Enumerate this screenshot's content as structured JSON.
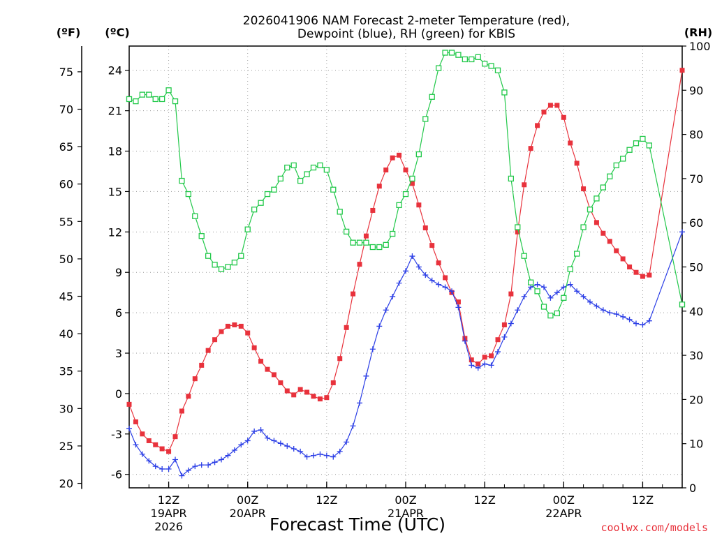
{
  "chart_data": {
    "type": "line",
    "title_line1": "2026041906 NAM Forecast 2-meter Temperature (red),",
    "title_line2": "Dewpoint (blue), RH (green) for KBIS",
    "xlabel": "Forecast Time (UTC)",
    "credit": "coolwx.com/models",
    "units": {
      "fahrenheit": "(ºF)",
      "celsius": "(ºC)",
      "rh": "(RH)"
    },
    "x_hours": [
      0,
      1,
      2,
      3,
      4,
      5,
      6,
      7,
      8,
      9,
      10,
      11,
      12,
      13,
      14,
      15,
      16,
      17,
      18,
      19,
      20,
      21,
      22,
      23,
      24,
      25,
      26,
      27,
      28,
      29,
      30,
      31,
      32,
      33,
      34,
      35,
      36,
      37,
      38,
      39,
      40,
      41,
      42,
      43,
      44,
      45,
      46,
      47,
      48,
      49,
      50,
      51,
      52,
      53,
      54,
      55,
      56,
      57,
      58,
      59,
      60,
      61,
      62,
      63,
      64,
      65,
      66,
      67,
      68,
      69,
      70,
      71,
      72,
      73,
      74,
      75,
      76,
      77,
      78,
      79,
      84
    ],
    "xlim": [
      0,
      84
    ],
    "grid": true,
    "x_ticks": [
      {
        "hour": 6,
        "label": "12Z",
        "sub": [
          "19APR",
          "2026"
        ]
      },
      {
        "hour": 18,
        "label": "00Z",
        "sub": [
          "20APR"
        ]
      },
      {
        "hour": 30,
        "label": "12Z",
        "sub": []
      },
      {
        "hour": 42,
        "label": "00Z",
        "sub": [
          "21APR"
        ]
      },
      {
        "hour": 54,
        "label": "12Z",
        "sub": []
      },
      {
        "hour": 66,
        "label": "00Z",
        "sub": [
          "22APR"
        ]
      },
      {
        "hour": 78,
        "label": "12Z",
        "sub": []
      }
    ],
    "y_left_c": {
      "ylim": [
        -7,
        25.8
      ],
      "ticks": [
        -6,
        -3,
        0,
        3,
        6,
        9,
        12,
        15,
        18,
        21,
        24
      ]
    },
    "y_left_f": {
      "ticks": [
        20,
        25,
        30,
        35,
        40,
        45,
        50,
        55,
        60,
        65,
        70,
        75
      ]
    },
    "y_right_rh": {
      "ylim": [
        0,
        100
      ],
      "ticks": [
        0,
        10,
        20,
        30,
        40,
        50,
        60,
        70,
        80,
        90,
        100
      ]
    },
    "series": [
      {
        "name": "Temperature (red)",
        "axis": "celsius",
        "color": "#e8323c",
        "marker": "filled-square",
        "values": [
          -0.8,
          -2.1,
          -3.0,
          -3.5,
          -3.8,
          -4.1,
          -4.3,
          -3.2,
          -1.3,
          -0.2,
          1.1,
          2.1,
          3.2,
          4.0,
          4.6,
          5.0,
          5.1,
          5.0,
          4.5,
          3.4,
          2.4,
          1.8,
          1.4,
          0.8,
          0.2,
          -0.1,
          0.3,
          0.1,
          -0.2,
          -0.4,
          -0.3,
          0.8,
          2.6,
          4.9,
          7.4,
          9.6,
          11.7,
          13.6,
          15.4,
          16.6,
          17.5,
          17.7,
          16.6,
          15.6,
          14.0,
          12.3,
          11.0,
          9.7,
          8.6,
          7.5,
          6.8,
          4.1,
          2.5,
          2.2,
          2.7,
          2.8,
          4.0,
          5.1,
          7.4,
          12.0,
          15.5,
          18.2,
          19.9,
          20.9,
          21.4,
          21.4,
          20.5,
          18.6,
          17.1,
          15.2,
          13.7,
          12.7,
          11.9,
          11.3,
          10.6,
          10.0,
          9.4,
          9.0,
          8.7,
          8.8,
          24.0
        ]
      },
      {
        "name": "Dewpoint (blue)",
        "axis": "celsius",
        "color": "#2b3ee6",
        "marker": "plus",
        "values": [
          -2.6,
          -3.8,
          -4.5,
          -5.0,
          -5.4,
          -5.6,
          -5.6,
          -4.9,
          -6.1,
          -5.7,
          -5.4,
          -5.3,
          -5.3,
          -5.1,
          -4.9,
          -4.6,
          -4.2,
          -3.8,
          -3.5,
          -2.8,
          -2.7,
          -3.3,
          -3.5,
          -3.7,
          -3.9,
          -4.1,
          -4.3,
          -4.7,
          -4.6,
          -4.5,
          -4.6,
          -4.7,
          -4.3,
          -3.6,
          -2.4,
          -0.7,
          1.3,
          3.3,
          5.0,
          6.2,
          7.2,
          8.2,
          9.1,
          10.2,
          9.4,
          8.8,
          8.4,
          8.1,
          7.9,
          7.6,
          6.4,
          3.9,
          2.1,
          1.9,
          2.2,
          2.1,
          3.1,
          4.2,
          5.2,
          6.2,
          7.2,
          7.9,
          8.1,
          7.9,
          7.1,
          7.5,
          7.9,
          8.1,
          7.6,
          7.2,
          6.8,
          6.5,
          6.2,
          6.0,
          5.9,
          5.7,
          5.5,
          5.2,
          5.1,
          5.4,
          12.0
        ]
      },
      {
        "name": "RH (green)",
        "axis": "rh",
        "color": "#22c84a",
        "marker": "open-square",
        "values": [
          88,
          87.5,
          89,
          89,
          88,
          88,
          90,
          87.5,
          69.5,
          66.5,
          61.5,
          57,
          52.5,
          50.5,
          49.5,
          50,
          51,
          52.5,
          58.5,
          63,
          64.5,
          66.5,
          67.5,
          70,
          72.5,
          73,
          69.5,
          71,
          72.5,
          73,
          72,
          67.5,
          62.5,
          58,
          55.5,
          55.5,
          55.5,
          54.5,
          54.5,
          55,
          57.5,
          64,
          66.5,
          70,
          75.5,
          83.5,
          88.5,
          95,
          98.5,
          98.5,
          98,
          97,
          97,
          97.5,
          96,
          95.5,
          94.5,
          89.5,
          70,
          59,
          52.5,
          46.5,
          44.5,
          41,
          39,
          39.5,
          43,
          49.5,
          53,
          59,
          63,
          65.5,
          68,
          70.5,
          73,
          74.5,
          76.5,
          78,
          79,
          77.5,
          41.5
        ]
      }
    ]
  }
}
